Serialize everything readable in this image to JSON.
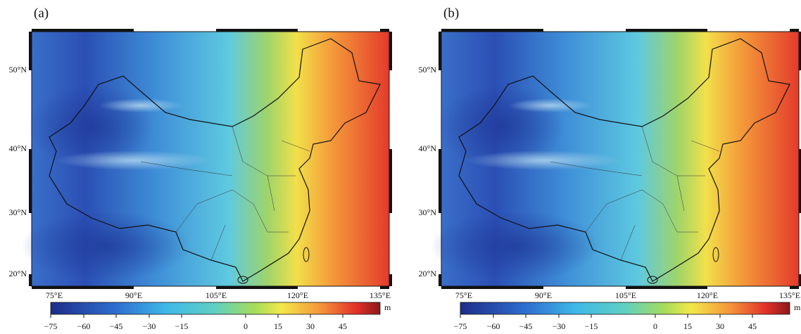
{
  "panels": [
    {
      "label": "(a)",
      "lat_labels": [
        "50°N",
        "40°N",
        "30°N",
        "20°N"
      ],
      "lon_labels": [
        "75°E",
        "90°E",
        "105°E",
        "120°E",
        "135°E"
      ],
      "colorbar_ticks": [
        "−75",
        "−60",
        "−45",
        "−30",
        "−15",
        "0",
        "15",
        "30",
        "45"
      ],
      "colorbar_unit": "m"
    },
    {
      "label": "(b)",
      "lat_labels": [
        "50°N",
        "40°N",
        "30°N",
        "20°N"
      ],
      "lon_labels": [
        "75°E",
        "90°E",
        "105°E",
        "120°E",
        "135°E"
      ],
      "colorbar_ticks": [
        "−75",
        "−60",
        "−45",
        "−30",
        "−15",
        "0",
        "15",
        "30",
        "45"
      ],
      "colorbar_unit": "m"
    }
  ]
}
